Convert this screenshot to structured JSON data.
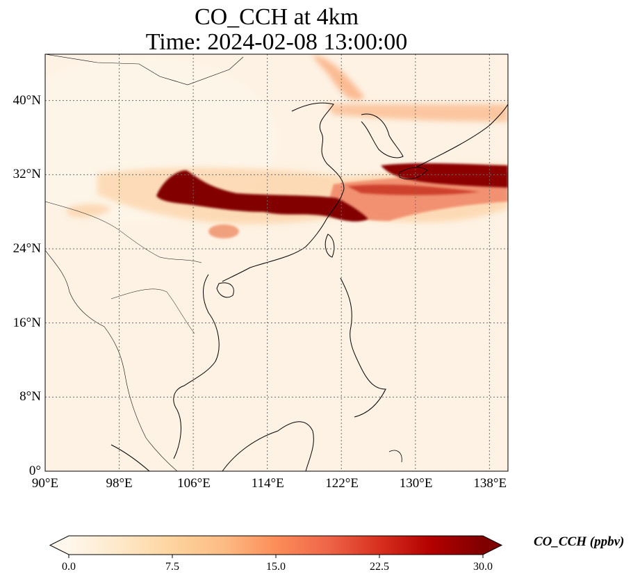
{
  "figure": {
    "title_line1": "CO_CCH at 4km",
    "title_line2": "Time: 2024-02-08 13:00:00"
  },
  "map": {
    "projection": "PlateCarree",
    "extent": {
      "lon_min": 90,
      "lon_max": 140,
      "lat_min": 0,
      "lat_max": 45
    },
    "gridlines": "dotted",
    "x_ticks": [
      "90°E",
      "98°E",
      "106°E",
      "114°E",
      "122°E",
      "130°E",
      "138°E"
    ],
    "y_ticks": [
      "0°",
      "8°N",
      "16°N",
      "24°N",
      "32°N",
      "40°N"
    ],
    "x_tick_values": [
      90,
      98,
      106,
      114,
      122,
      130,
      138
    ],
    "y_tick_values": [
      0,
      8,
      16,
      24,
      32,
      40
    ],
    "features": [
      "coastlines",
      "country-borders"
    ]
  },
  "colorbar": {
    "label": "CO_CCH (ppbv)",
    "colormap": "OrRd",
    "vmin": 0,
    "vmax": 30,
    "extend": "both",
    "ticks": [
      "0.0",
      "7.5",
      "15.0",
      "22.5",
      "30.0"
    ],
    "colors": [
      "#fff7ec",
      "#fee8c8",
      "#fdd49e",
      "#fdbb84",
      "#fc8d59",
      "#ef6548",
      "#d7301f",
      "#b30000",
      "#7f0000"
    ]
  },
  "chart_data": {
    "type": "heatmap",
    "variable": "CO_CCH",
    "unit": "ppbv",
    "level": "4km",
    "time": "2024-02-08 13:00:00",
    "value_range": [
      0,
      30
    ],
    "plumes": [
      {
        "name": "east-china-core",
        "lon": [
          102.0,
          123.0
        ],
        "lat": [
          27.5,
          30.0
        ],
        "value": 30
      },
      {
        "name": "east-china-sea-band",
        "lon": [
          120.0,
          140.0
        ],
        "lat": [
          28.0,
          31.5
        ],
        "value": 22
      },
      {
        "name": "southern-japan-band",
        "lon": [
          126.5,
          140.0
        ],
        "lat": [
          31.0,
          33.0
        ],
        "value": 30
      },
      {
        "name": "korea-sea-of-japan-band",
        "lon": [
          123.0,
          140.0
        ],
        "lat": [
          38.0,
          40.0
        ],
        "value": 12
      },
      {
        "name": "northeast-china-band",
        "lon": [
          117.0,
          123.0
        ],
        "lat": [
          39.0,
          44.5
        ],
        "value": 10
      },
      {
        "name": "sichuan-blob",
        "lon": [
          108.0,
          112.0
        ],
        "lat": [
          25.0,
          27.0
        ],
        "value": 14
      },
      {
        "name": "northwest-patch",
        "lon": [
          93.0,
          99.0
        ],
        "lat": [
          27.0,
          29.0
        ],
        "value": 5
      }
    ]
  }
}
